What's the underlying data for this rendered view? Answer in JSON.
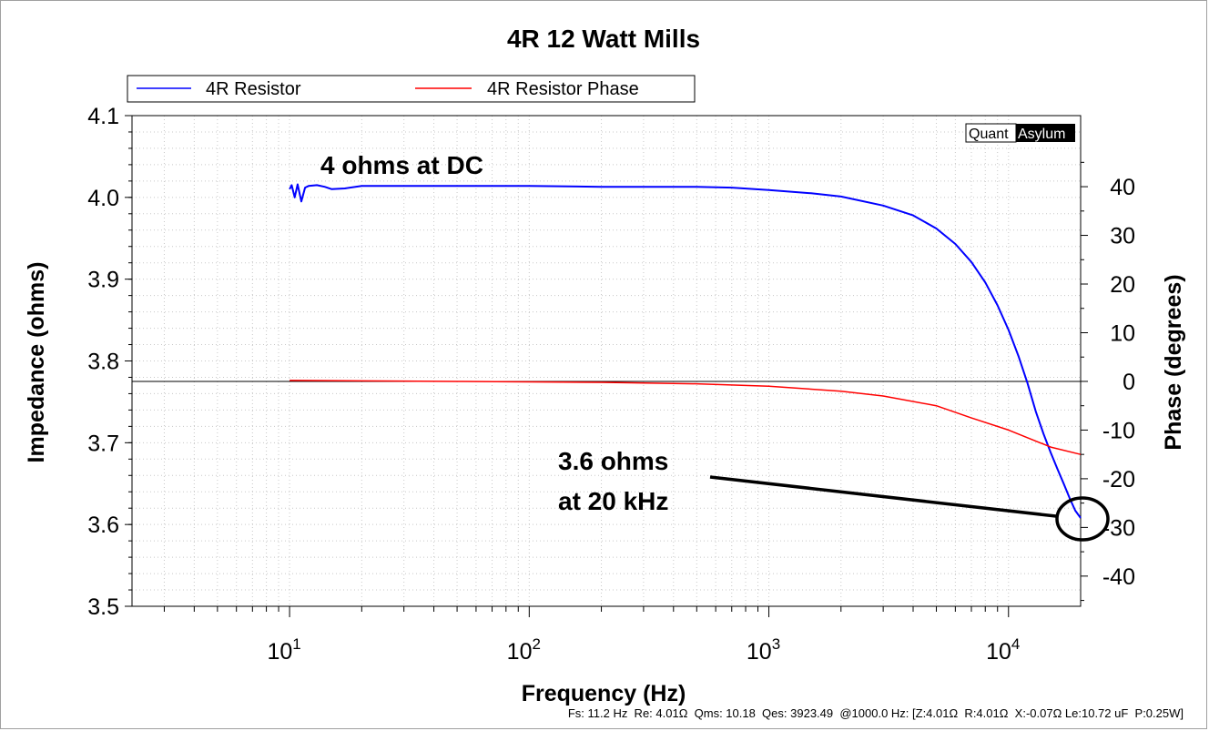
{
  "chart_data": {
    "type": "line",
    "title": "4R 12 Watt Mills",
    "xlabel": "Frequency (Hz)",
    "ylabel": "Impedance (ohms)",
    "y2label": "Phase (degrees)",
    "xscale": "log",
    "xlim": [
      2.2,
      20000
    ],
    "ylim": [
      3.5,
      4.1
    ],
    "y2lim": [
      -46.2,
      54.6
    ],
    "x_ticks": [
      10,
      100,
      1000,
      10000
    ],
    "x_tick_labels": [
      {
        "base": "10",
        "exp": "1"
      },
      {
        "base": "10",
        "exp": "2"
      },
      {
        "base": "10",
        "exp": "3"
      },
      {
        "base": "10",
        "exp": "4"
      }
    ],
    "y_ticks": [
      "3.5",
      "3.6",
      "3.7",
      "3.8",
      "3.9",
      "4.0",
      "4.1"
    ],
    "y2_ticks": [
      "-40",
      "-30",
      "-20",
      "-10",
      "0",
      "10",
      "20",
      "30",
      "40"
    ],
    "grid": true,
    "legend_position": "top-left",
    "series": [
      {
        "name": "4R Resistor",
        "axis": "left",
        "color": "#0000ff",
        "x": [
          10,
          10.2,
          10.5,
          10.8,
          11.2,
          11.6,
          12,
          13,
          14,
          15,
          17,
          20,
          30,
          50,
          100,
          200,
          300,
          500,
          700,
          1000,
          1500,
          2000,
          3000,
          4000,
          5000,
          6000,
          7000,
          8000,
          9000,
          10000,
          11000,
          12000,
          13000,
          14000,
          15000,
          16000,
          17000,
          18000,
          19000,
          20000
        ],
        "y": [
          4.01,
          4.015,
          4.0,
          4.016,
          3.995,
          4.012,
          4.014,
          4.015,
          4.013,
          4.01,
          4.011,
          4.014,
          4.014,
          4.014,
          4.014,
          4.013,
          4.013,
          4.013,
          4.012,
          4.009,
          4.005,
          4.001,
          3.99,
          3.978,
          3.962,
          3.943,
          3.921,
          3.896,
          3.868,
          3.838,
          3.806,
          3.773,
          3.738,
          3.711,
          3.688,
          3.668,
          3.65,
          3.632,
          3.617,
          3.608
        ]
      },
      {
        "name": "4R Resistor Phase",
        "axis": "right",
        "color": "#ff0000",
        "x": [
          10,
          20,
          50,
          100,
          200,
          500,
          1000,
          2000,
          3000,
          5000,
          7000,
          10000,
          15000,
          20000
        ],
        "y": [
          0.2,
          0.1,
          0,
          -0.1,
          -0.2,
          -0.5,
          -1,
          -2,
          -3,
          -5,
          -7.5,
          -10,
          -13.5,
          -15
        ]
      }
    ],
    "annotations": [
      "4 ohms at DC",
      "3.6 ohms",
      "at 20 kHz"
    ]
  },
  "watermark": {
    "part1": "Quant",
    "part2": "Asylum"
  },
  "footer_text": "Fs: 11.2 Hz  Re: 4.01Ω  Qms: 10.18  Qes: 3923.49  @1000.0 Hz: [Z:4.01Ω  R:4.01Ω  X:-0.07Ω Le:10.72 uF  P:0.25W]"
}
